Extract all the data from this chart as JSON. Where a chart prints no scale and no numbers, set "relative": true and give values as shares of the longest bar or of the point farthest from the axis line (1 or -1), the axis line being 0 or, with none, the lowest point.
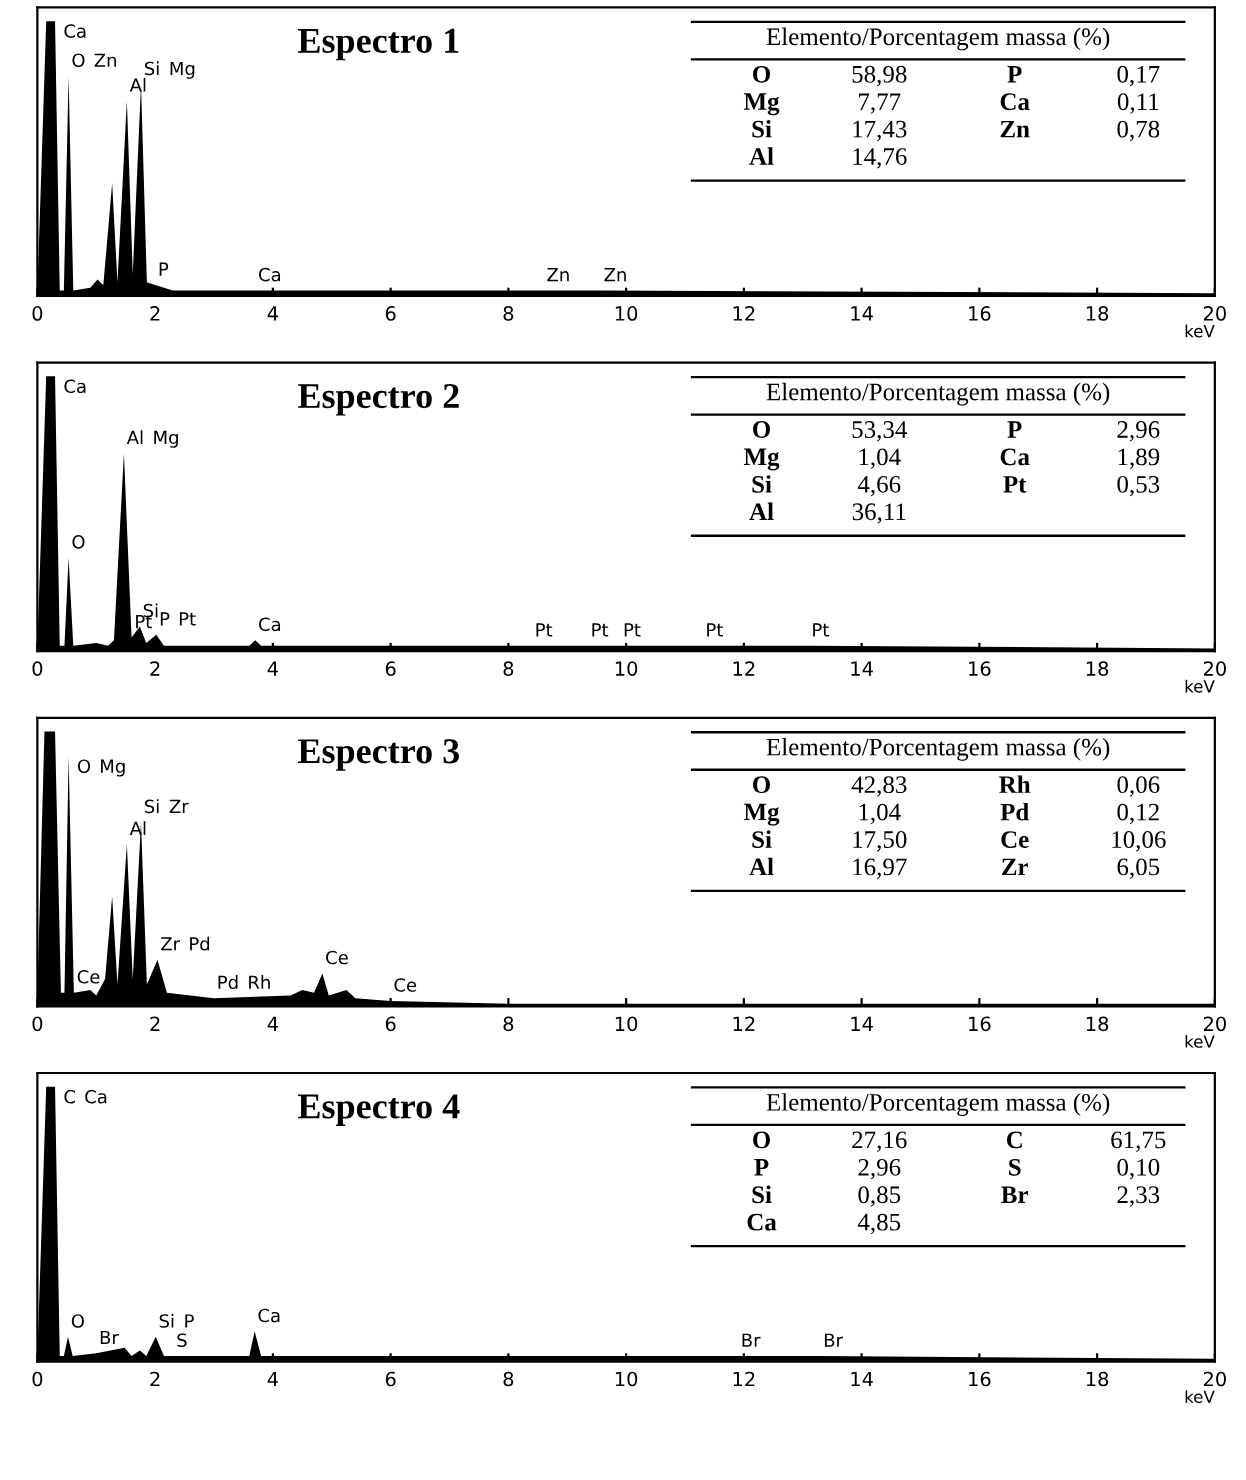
{
  "chart_data": [
    {
      "type": "area",
      "title": "Espectro 1",
      "xlabel": "keV",
      "relative": true,
      "tick_labels": "x",
      "xlim": [
        0,
        20
      ],
      "xticks": [
        0,
        2,
        4,
        6,
        8,
        10,
        12,
        14,
        16,
        18,
        20
      ],
      "x": [
        0,
        0.15,
        0.3,
        0.38,
        0.45,
        0.53,
        0.61,
        0.9,
        1.02,
        1.12,
        1.27,
        1.36,
        1.52,
        1.62,
        1.76,
        1.86,
        2.0,
        2.3,
        3.7,
        8.6,
        9.57,
        20
      ],
      "series": [
        {
          "color": "#000000",
          "values": [
            0.02,
            1,
            1,
            0.02,
            0.02,
            0.8,
            0.02,
            0.03,
            0.06,
            0.04,
            0.41,
            0.05,
            0.71,
            0.08,
            0.77,
            0.05,
            0.04,
            0.02,
            0.02,
            0.02,
            0.02,
            0.01
          ]
        }
      ],
      "annotations": [
        {
          "text": "Ca",
          "x": 0.3,
          "y": 1
        },
        {
          "text": "O",
          "x": 0.53,
          "y": 0.8
        },
        {
          "text": "Al",
          "x": 1.52,
          "y": 0.71
        },
        {
          "text": "Si",
          "x": 1.76,
          "y": 0.77
        },
        {
          "text": "Mg",
          "x": 1.76,
          "y": 0.77
        },
        {
          "text": "Zn",
          "x": 0.53,
          "y": 0.8
        },
        {
          "text": "P",
          "x": 2.0,
          "y": 0.04
        },
        {
          "text": "Ca",
          "x": 3.7,
          "y": 0.02
        },
        {
          "text": "Zn",
          "x": 8.6,
          "y": 0.02
        },
        {
          "text": "Zn",
          "x": 9.57,
          "y": 0.02
        },
        "Elemento/Porcentagem massa (%)",
        "O",
        "58,98",
        "P",
        "0,17",
        "Mg",
        "7,77",
        "Ca",
        "0,11",
        "Si",
        "17,43",
        "Zn",
        "0,78",
        "Al",
        "14,76"
      ]
    },
    {
      "type": "area",
      "title": "Espectro 2",
      "xlabel": "keV",
      "relative": true,
      "tick_labels": "x",
      "xlim": [
        0,
        20
      ],
      "xticks": [
        0,
        2,
        4,
        6,
        8,
        10,
        12,
        14,
        16,
        18,
        20
      ],
      "x": [
        0,
        0.15,
        0.3,
        0.38,
        0.46,
        0.53,
        0.61,
        1.0,
        1.2,
        1.3,
        1.47,
        1.6,
        1.74,
        1.85,
        2.02,
        2.15,
        3.6,
        3.7,
        3.8,
        8.4,
        9.35,
        9.9,
        11.3,
        13.1,
        20
      ],
      "series": [
        {
          "color": "#000000",
          "values": [
            0.02,
            1,
            1,
            0.02,
            0.02,
            0.34,
            0.02,
            0.03,
            0.02,
            0.04,
            0.72,
            0.05,
            0.09,
            0.03,
            0.06,
            0.02,
            0.02,
            0.04,
            0.02,
            0.02,
            0.02,
            0.02,
            0.02,
            0.02,
            0.01
          ]
        }
      ],
      "annotations": [
        {
          "text": "Ca",
          "x": 0.3,
          "y": 1
        },
        {
          "text": "Al",
          "x": 1.47,
          "y": 0.72
        },
        {
          "text": "Mg",
          "x": 1.47,
          "y": 0.72
        },
        {
          "text": "O",
          "x": 0.53,
          "y": 0.34
        },
        {
          "text": "Si",
          "x": 1.74,
          "y": 0.09
        },
        {
          "text": "Ca",
          "x": 3.7,
          "y": 0.04
        },
        {
          "text": "P",
          "x": 2.02,
          "y": 0.06
        },
        {
          "text": "Pt",
          "x": 2.02,
          "y": 0.06
        },
        {
          "text": "Pt",
          "x": 1.6,
          "y": 0.05
        },
        {
          "text": "Pt",
          "x": 8.4,
          "y": 0.02
        },
        {
          "text": "Pt",
          "x": 9.35,
          "y": 0.02
        },
        {
          "text": "Pt",
          "x": 9.9,
          "y": 0.02
        },
        {
          "text": "Pt",
          "x": 11.3,
          "y": 0.02
        },
        {
          "text": "Pt",
          "x": 13.1,
          "y": 0.02
        },
        "Elemento/Porcentagem massa (%)",
        "O",
        "53,34",
        "P",
        "2,96",
        "Mg",
        "1,04",
        "Ca",
        "1,89",
        "Si",
        "4,66",
        "Pt",
        "0,53",
        "Al",
        "36,11"
      ]
    },
    {
      "type": "area",
      "title": "Espectro 3",
      "xlabel": "keV",
      "relative": true,
      "tick_labels": "x",
      "xlim": [
        0,
        20
      ],
      "xticks": [
        0,
        2,
        4,
        6,
        8,
        10,
        12,
        14,
        16,
        18,
        20
      ],
      "x": [
        0,
        0.12,
        0.3,
        0.4,
        0.46,
        0.53,
        0.62,
        0.9,
        1.0,
        1.15,
        1.27,
        1.36,
        1.52,
        1.62,
        1.76,
        1.86,
        2.04,
        2.2,
        3.0,
        4.3,
        4.5,
        4.7,
        4.84,
        4.95,
        5.25,
        5.4,
        6.0,
        8.0,
        20
      ],
      "series": [
        {
          "color": "#000000",
          "values": [
            0.05,
            1,
            1,
            0.05,
            0.05,
            0.91,
            0.05,
            0.06,
            0.04,
            0.1,
            0.4,
            0.08,
            0.59,
            0.1,
            0.67,
            0.08,
            0.17,
            0.05,
            0.03,
            0.04,
            0.06,
            0.05,
            0.12,
            0.04,
            0.06,
            0.03,
            0.02,
            0.01,
            0.01
          ]
        }
      ],
      "annotations": [
        {
          "text": "O",
          "x": 0.53,
          "y": 0.91
        },
        {
          "text": "Mg",
          "x": 0.53,
          "y": 0.91
        },
        {
          "text": "Al",
          "x": 1.52,
          "y": 0.59
        },
        {
          "text": "Si",
          "x": 1.76,
          "y": 0.67
        },
        {
          "text": "Zr",
          "x": 1.76,
          "y": 0.67
        },
        {
          "text": "Ce",
          "x": 0.62,
          "y": 0.05
        },
        {
          "text": "Zr",
          "x": 2.04,
          "y": 0.17
        },
        {
          "text": "Pd",
          "x": 2.04,
          "y": 0.17
        },
        {
          "text": "Pd",
          "x": 3.0,
          "y": 0.03
        },
        {
          "text": "Rh",
          "x": 3.0,
          "y": 0.03
        },
        {
          "text": "Ce",
          "x": 4.84,
          "y": 0.12
        },
        {
          "text": "Ce",
          "x": 6.0,
          "y": 0.02
        },
        "Elemento/Porcentagem massa (%)",
        "O",
        "42,83",
        "Rh",
        "0,06",
        "Mg",
        "1,04",
        "Pd",
        "0,12",
        "Si",
        "17,50",
        "Ce",
        "10,06",
        "Al",
        "16,97",
        "Zr",
        "6,05"
      ]
    },
    {
      "type": "area",
      "title": "Espectro 4",
      "xlabel": "keV",
      "relative": true,
      "tick_labels": "x",
      "xlim": [
        0,
        20
      ],
      "xticks": [
        0,
        2,
        4,
        6,
        8,
        10,
        12,
        14,
        16,
        18,
        20
      ],
      "x": [
        0,
        0.15,
        0.3,
        0.38,
        0.45,
        0.52,
        0.6,
        1.0,
        1.48,
        1.6,
        1.74,
        1.85,
        2.01,
        2.15,
        2.31,
        3.6,
        3.69,
        3.8,
        8.6,
        11.9,
        13.3,
        20
      ],
      "series": [
        {
          "color": "#000000",
          "values": [
            0.02,
            1,
            1,
            0.02,
            0.02,
            0.09,
            0.02,
            0.03,
            0.05,
            0.02,
            0.04,
            0.02,
            0.09,
            0.02,
            0.02,
            0.02,
            0.11,
            0.02,
            0.02,
            0.02,
            0.02,
            0.01
          ]
        }
      ],
      "annotations": [
        {
          "text": "C",
          "x": 0.3,
          "y": 1
        },
        {
          "text": "Ca",
          "x": 0.3,
          "y": 1
        },
        {
          "text": "O",
          "x": 0.52,
          "y": 0.09
        },
        {
          "text": "Br",
          "x": 1.0,
          "y": 0.03
        },
        {
          "text": "Si",
          "x": 2.01,
          "y": 0.09
        },
        {
          "text": "P",
          "x": 2.01,
          "y": 0.09
        },
        {
          "text": "S",
          "x": 2.31,
          "y": 0.02
        },
        {
          "text": "Ca",
          "x": 3.69,
          "y": 0.11
        },
        {
          "text": "Br",
          "x": 11.9,
          "y": 0.02
        },
        {
          "text": "Br",
          "x": 13.3,
          "y": 0.02
        },
        "Elemento/Porcentagem massa (%)",
        "O",
        "27,16",
        "C",
        "61,75",
        "P",
        "2,96",
        "S",
        "0,10",
        "Si",
        "0,85",
        "Br",
        "2,33",
        "Ca",
        "4,85"
      ]
    }
  ]
}
